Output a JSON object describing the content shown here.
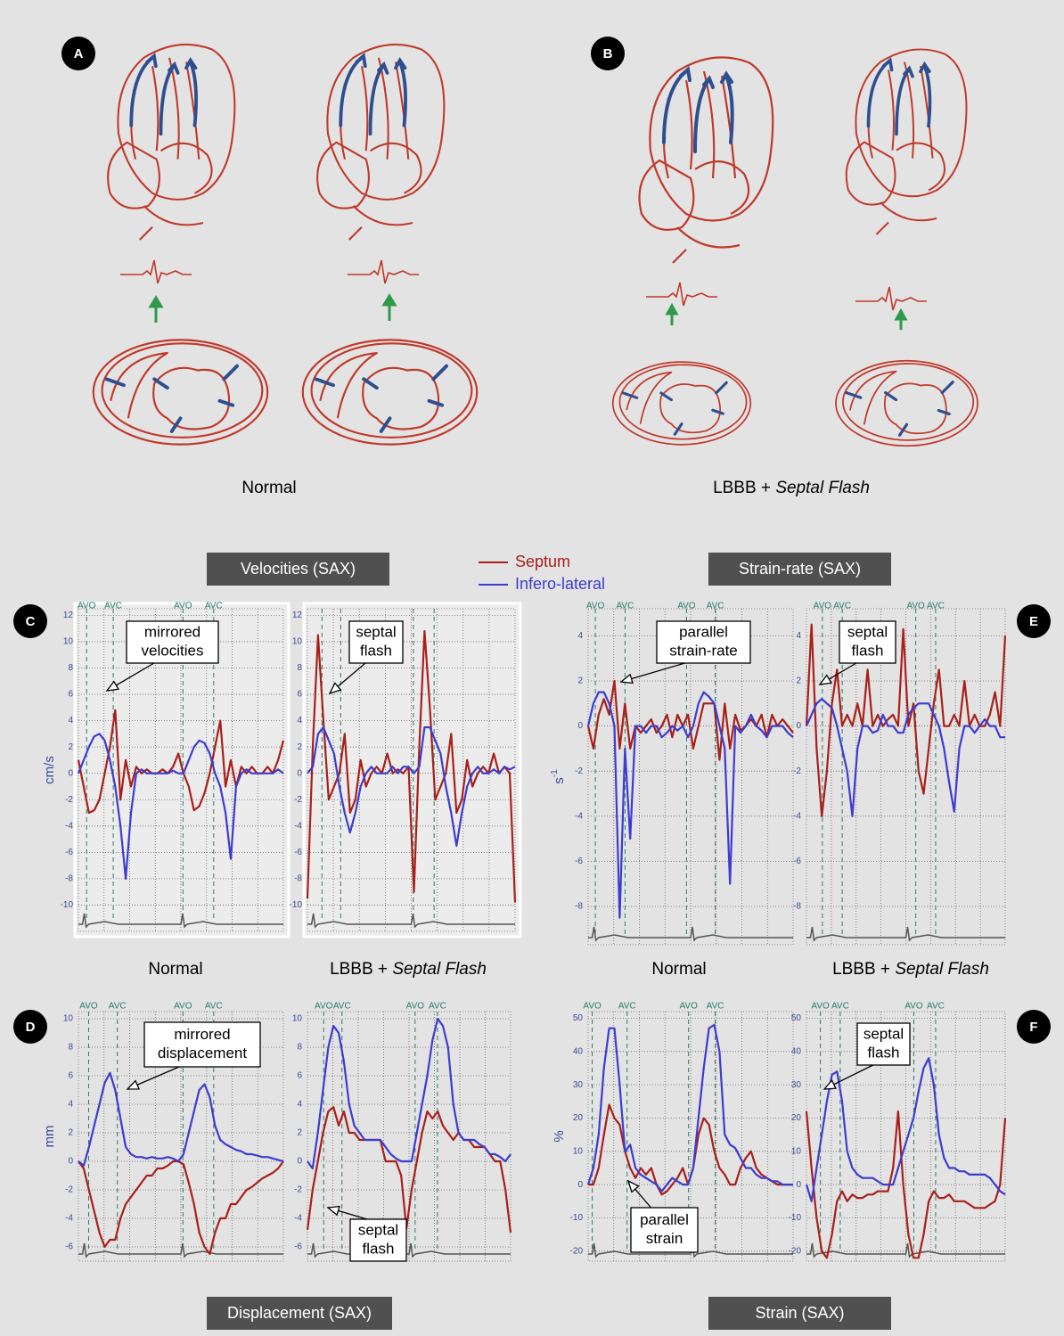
{
  "panel_labels": [
    "A",
    "B",
    "C",
    "D",
    "E",
    "F"
  ],
  "group_captions": [
    [
      "Normal"
    ],
    [
      "LBBB +",
      "Septal Flash"
    ]
  ],
  "section_titles": [
    "Velocities (SAX)",
    "Strain-rate (SAX)",
    "Displacement (SAX)",
    "Strain (SAX)"
  ],
  "legend": [
    {
      "name": "Septum",
      "color": "#a8201a"
    },
    {
      "name": "Infero-lateral",
      "color": "#3c3cd0"
    }
  ],
  "chart_data": [
    {
      "type": "line",
      "ylabel": "cm/s",
      "ylim": [
        -12,
        12.5
      ],
      "yticks": [
        -10,
        -8,
        -6,
        -4,
        -2,
        0,
        2,
        4,
        6,
        8,
        10,
        12
      ],
      "grid": true,
      "events": [
        "AVO",
        "AVC",
        "AVO",
        "AVC"
      ],
      "annotations": [
        [
          "mirrored",
          "velocities"
        ]
      ],
      "caption": [
        "Normal"
      ],
      "series": [
        {
          "values": [
            1,
            -1,
            -3,
            -2.8,
            -2,
            0,
            2,
            4.8,
            -2,
            1,
            -1,
            0.5,
            0,
            0.3,
            0,
            0,
            0.3,
            0,
            0.5,
            1.5,
            0,
            -1,
            -2.8,
            -2.5,
            -1.5,
            0,
            2,
            4,
            -1,
            1,
            -1,
            0.5,
            0,
            0.5,
            0,
            0,
            0.5,
            0,
            1,
            2.5
          ]
        },
        {
          "values": [
            0,
            1,
            2,
            2.8,
            3,
            2.5,
            1,
            -1,
            -4,
            -8,
            -3,
            0,
            0.3,
            0,
            0,
            0,
            0,
            0,
            0.2,
            0,
            0,
            1,
            2,
            2.5,
            2.3,
            1.5,
            0,
            -1,
            -3,
            -6.5,
            -1,
            0,
            0.3,
            0,
            0,
            0,
            0,
            0,
            0.3,
            0
          ]
        }
      ]
    },
    {
      "type": "line",
      "ylim": [
        -12,
        12.5
      ],
      "yticks": [
        -10,
        -8,
        -6,
        -4,
        -2,
        0,
        2,
        4,
        6,
        8,
        10,
        12
      ],
      "grid": true,
      "events": [],
      "annotations": [
        [
          "septal",
          "flash"
        ]
      ],
      "caption": [
        "LBBB +",
        "Septal Flash"
      ],
      "series": [
        {
          "values": [
            -9.5,
            2,
            10.5,
            4,
            -2,
            -1,
            0,
            3,
            -3,
            -2,
            1,
            -1,
            0,
            0.5,
            0,
            1.5,
            0,
            0.3,
            0,
            0.5,
            -9,
            2,
            10.8,
            5,
            -2,
            -1,
            0,
            3,
            -3,
            -2,
            1,
            -1,
            0,
            0.5,
            0,
            1.5,
            0,
            0.5,
            0,
            -9.8
          ]
        },
        {
          "values": [
            0,
            0.5,
            3,
            3.5,
            2.5,
            1.5,
            -1,
            -3,
            -4.5,
            -3,
            -1,
            0,
            0.5,
            0,
            0,
            0,
            0.5,
            0,
            0.5,
            0.5,
            0,
            0.5,
            3.5,
            3.5,
            2.5,
            1.5,
            -1,
            -3,
            -5.5,
            -3,
            -1,
            0,
            0.5,
            0,
            0,
            0.3,
            0,
            0.5,
            0.3,
            0.5
          ]
        }
      ]
    },
    {
      "type": "line",
      "ylabel": "s",
      "ylabel_superscript": "-1",
      "ylim": [
        -9.7,
        5.2
      ],
      "yticks": [
        -8,
        -6,
        -4,
        -2,
        0,
        2,
        4
      ],
      "grid": true,
      "events": [
        "AVO",
        "AVC",
        "AVO",
        "AVC"
      ],
      "annotations": [
        [
          "parallel",
          "strain-rate"
        ]
      ],
      "caption": [
        "Normal"
      ],
      "series": [
        {
          "values": [
            0,
            -1,
            0.5,
            1.2,
            0.5,
            2,
            -1,
            1,
            -1,
            0,
            -0.3,
            0,
            0.3,
            -0.3,
            0,
            0.5,
            -0.5,
            0.5,
            0,
            0.5,
            -1,
            0,
            1,
            1,
            1,
            -1.5,
            1,
            -1,
            0.5,
            -0.2,
            0,
            0.3,
            0,
            0.5,
            -0.5,
            0.5,
            0,
            0.3,
            0,
            -0.3
          ]
        },
        {
          "values": [
            0,
            1,
            1.5,
            1.5,
            1,
            0,
            -8.5,
            -1,
            -5,
            0,
            0,
            -0.3,
            0,
            0,
            -0.5,
            -0.3,
            0,
            -0.2,
            0,
            -0.5,
            0,
            1,
            1.5,
            1.3,
            1,
            0,
            -1,
            -7,
            0,
            -0.3,
            0,
            0.5,
            0,
            -0.2,
            -0.5,
            0,
            0,
            0,
            -0.3,
            -0.5
          ]
        }
      ]
    },
    {
      "type": "line",
      "ylim": [
        -9.7,
        5.2
      ],
      "yticks": [
        -8,
        -6,
        -4,
        -2,
        0,
        2,
        4
      ],
      "grid": true,
      "events": [
        "AVO",
        "AVC",
        "AVO",
        "AVC"
      ],
      "annotations": [
        [
          "septal",
          "flash"
        ]
      ],
      "caption": [
        "LBBB +",
        "Septal Flash"
      ],
      "series": [
        {
          "values": [
            0,
            4.5,
            -1,
            -4,
            -2,
            1,
            2.5,
            0,
            0.5,
            0,
            1,
            0,
            2.5,
            0,
            0.5,
            0,
            0.3,
            0.5,
            0,
            4.3,
            0,
            1,
            -2,
            -3,
            -1,
            1,
            2.5,
            0,
            0,
            0.5,
            0,
            2,
            0,
            0.5,
            0,
            0,
            0.5,
            1.5,
            0,
            4
          ]
        },
        {
          "values": [
            0,
            0.5,
            1,
            1.2,
            1,
            0.8,
            0,
            -1,
            -2,
            -4,
            -1,
            0,
            0,
            -0.3,
            -0.2,
            0.5,
            0,
            0,
            -0.3,
            -0.3,
            0.5,
            0.8,
            1,
            1,
            1,
            0.5,
            0,
            -1,
            -2.5,
            -3.8,
            -1,
            0,
            0,
            -0.3,
            0,
            0.3,
            0,
            0,
            -0.5,
            -0.5
          ]
        }
      ]
    },
    {
      "type": "line",
      "ylabel": "mm",
      "ylim": [
        -7,
        10.5
      ],
      "yticks": [
        -6,
        -4,
        -2,
        0,
        2,
        4,
        6,
        8,
        10
      ],
      "grid": true,
      "events": [
        "AVO",
        "AVC",
        "AVO",
        "AVC"
      ],
      "annotations": [
        [
          "mirrored",
          "displacement"
        ]
      ],
      "series": [
        {
          "values": [
            0,
            -0.5,
            -2,
            -3.5,
            -5,
            -6,
            -5.5,
            -5.5,
            -4,
            -3,
            -2.5,
            -2,
            -1.5,
            -1,
            -1,
            -0.5,
            -0.5,
            -0.3,
            0,
            0,
            -0.2,
            -1.5,
            -3,
            -5,
            -6,
            -6.5,
            -5,
            -4,
            -4,
            -3,
            -3,
            -2.5,
            -2,
            -1.8,
            -1.5,
            -1.2,
            -1,
            -0.8,
            -0.5,
            0
          ]
        },
        {
          "values": [
            0,
            -0.3,
            1,
            2.5,
            4,
            5.5,
            6.2,
            5,
            3,
            1,
            0.5,
            0.3,
            0.3,
            0.2,
            0.3,
            0.2,
            0.2,
            0.3,
            0.2,
            0,
            0.5,
            2,
            3.5,
            5,
            5.4,
            4.5,
            2.5,
            1.5,
            1.2,
            1,
            0.8,
            0.7,
            0.5,
            0.5,
            0.4,
            0.3,
            0.3,
            0.2,
            0.1,
            0
          ]
        }
      ]
    },
    {
      "type": "line",
      "ylim": [
        -7,
        10.5
      ],
      "yticks": [
        -6,
        -4,
        -2,
        0,
        2,
        4,
        6,
        8,
        10
      ],
      "grid": true,
      "events": [
        "AVO",
        "AVC",
        "AVO",
        "AVC"
      ],
      "annotations": [
        [
          "septal",
          "flash"
        ]
      ],
      "series": [
        {
          "values": [
            -4.8,
            -2,
            0,
            2,
            3.5,
            3.8,
            2.5,
            3.5,
            2,
            2,
            1.5,
            1.5,
            1.5,
            1.5,
            1.5,
            0,
            0,
            0,
            -1,
            -4.7,
            -2,
            0,
            2,
            3.5,
            3,
            3.5,
            2.5,
            2,
            1.5,
            2,
            1.5,
            1.5,
            1,
            1,
            1,
            0.5,
            0,
            0,
            -2,
            -5
          ]
        },
        {
          "values": [
            0,
            -0.5,
            2,
            5,
            8,
            9.5,
            9,
            7,
            4,
            2.5,
            2,
            1.5,
            1.5,
            1.5,
            1.5,
            1,
            0.5,
            0.2,
            0,
            0,
            0,
            2,
            4,
            6,
            8.5,
            10,
            9.5,
            8,
            4,
            2,
            1.5,
            1.5,
            1.5,
            1.2,
            1,
            0.5,
            0.5,
            0.3,
            0,
            0.5
          ]
        }
      ]
    },
    {
      "type": "line",
      "ylabel": "%",
      "ylim": [
        -23,
        52
      ],
      "yticks": [
        -20,
        -10,
        0,
        10,
        20,
        30,
        40,
        50
      ],
      "grid": true,
      "events": [
        "AVO",
        "AVC",
        "AVO",
        "AVC"
      ],
      "annotations": [
        [
          "parallel",
          "strain"
        ]
      ],
      "series": [
        {
          "values": [
            0,
            0,
            5,
            15,
            24,
            20,
            18,
            10,
            5,
            2,
            5,
            3,
            5,
            0,
            -3,
            -2,
            0,
            2,
            5,
            0,
            5,
            15,
            20,
            18,
            10,
            5,
            3,
            0,
            0,
            5,
            8,
            10,
            5,
            3,
            2,
            1,
            0,
            0,
            0,
            0
          ]
        },
        {
          "values": [
            0,
            5,
            15,
            35,
            47,
            47,
            30,
            10,
            12,
            5,
            3,
            2,
            1,
            0,
            -2,
            0,
            2,
            1,
            0,
            0,
            5,
            20,
            35,
            47,
            48,
            40,
            15,
            12,
            11,
            8,
            5,
            5,
            3,
            2,
            2,
            1,
            1,
            0,
            0,
            0
          ]
        }
      ]
    },
    {
      "type": "line",
      "ylim": [
        -23,
        52
      ],
      "yticks": [
        -20,
        -10,
        0,
        10,
        20,
        30,
        40,
        50
      ],
      "grid": true,
      "events": [
        "AVO",
        "AVC",
        "AVO",
        "AVC"
      ],
      "annotations": [
        [
          "septal",
          "flash"
        ]
      ],
      "series": [
        {
          "values": [
            22,
            5,
            -10,
            -20,
            -22,
            -15,
            -5,
            -2,
            -5,
            -3,
            -4,
            -4,
            -3,
            -3,
            -2,
            -2,
            -2,
            5,
            22,
            0,
            -15,
            -22,
            -22,
            -15,
            -5,
            -2,
            -4,
            -4,
            -3,
            -5,
            -5,
            -5,
            -6,
            -7,
            -7,
            -7,
            -6,
            -5,
            0,
            20
          ]
        },
        {
          "values": [
            0,
            -5,
            5,
            15,
            25,
            33,
            34,
            25,
            10,
            5,
            3,
            2,
            2,
            2,
            1,
            0,
            0,
            0,
            5,
            10,
            15,
            20,
            28,
            35,
            38,
            30,
            15,
            8,
            5,
            5,
            4,
            4,
            3,
            3,
            3,
            3,
            2,
            0,
            -2,
            -3
          ]
        }
      ]
    }
  ]
}
